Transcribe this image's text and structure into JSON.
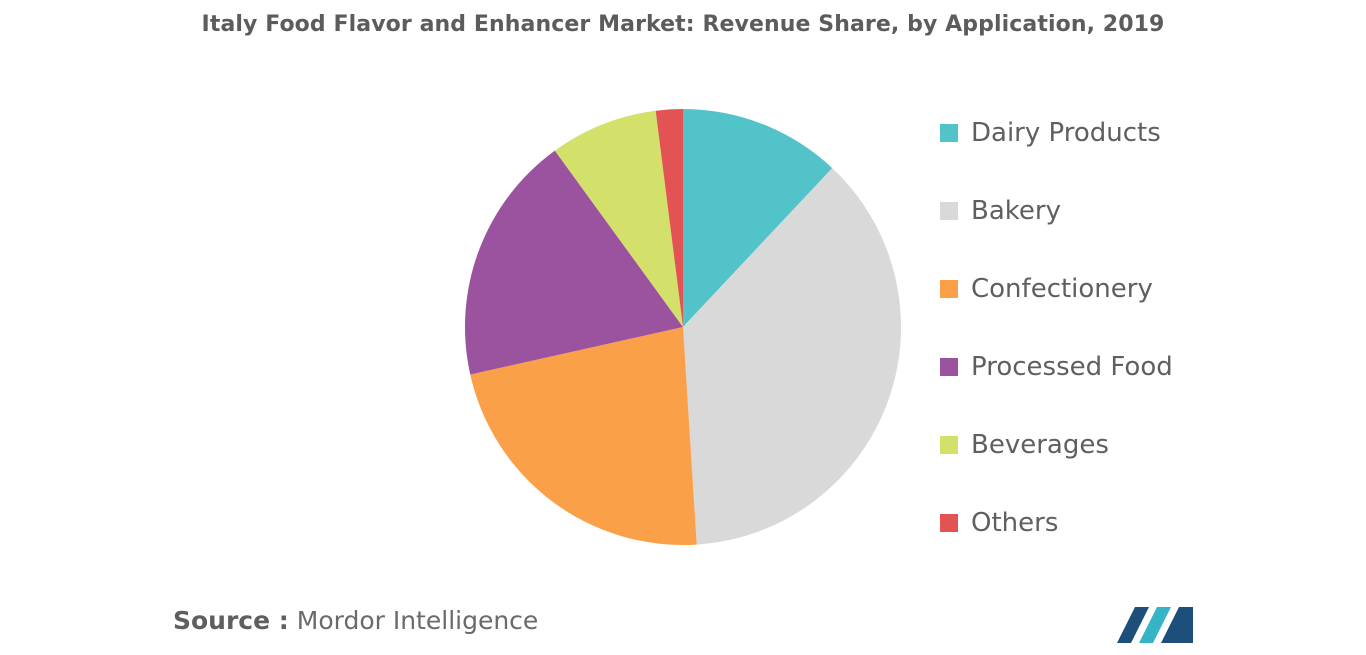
{
  "chart_data": {
    "type": "pie",
    "title": "Italy Food Flavor and Enhancer Market: Revenue Share, by Application, 2019",
    "legend_position": "right",
    "slices": [
      {
        "label": "Dairy Products",
        "value": 12,
        "color": "#52c3c9"
      },
      {
        "label": "Bakery",
        "value": 37,
        "color": "#d9d9d9"
      },
      {
        "label": "Confectionery",
        "value": 22.5,
        "color": "#f9a049"
      },
      {
        "label": "Processed Food",
        "value": 18.5,
        "color": "#9b529f"
      },
      {
        "label": "Beverages",
        "value": 8,
        "color": "#d3e16b"
      },
      {
        "label": "Others",
        "value": 2,
        "color": "#e35353"
      }
    ]
  },
  "source": {
    "prefix": "Source :",
    "text": "Mordor Intelligence"
  },
  "logo": {
    "icon": "mordor-intelligence-logo-icon",
    "colors": [
      "#1e4f7a",
      "#36b3c4"
    ]
  }
}
